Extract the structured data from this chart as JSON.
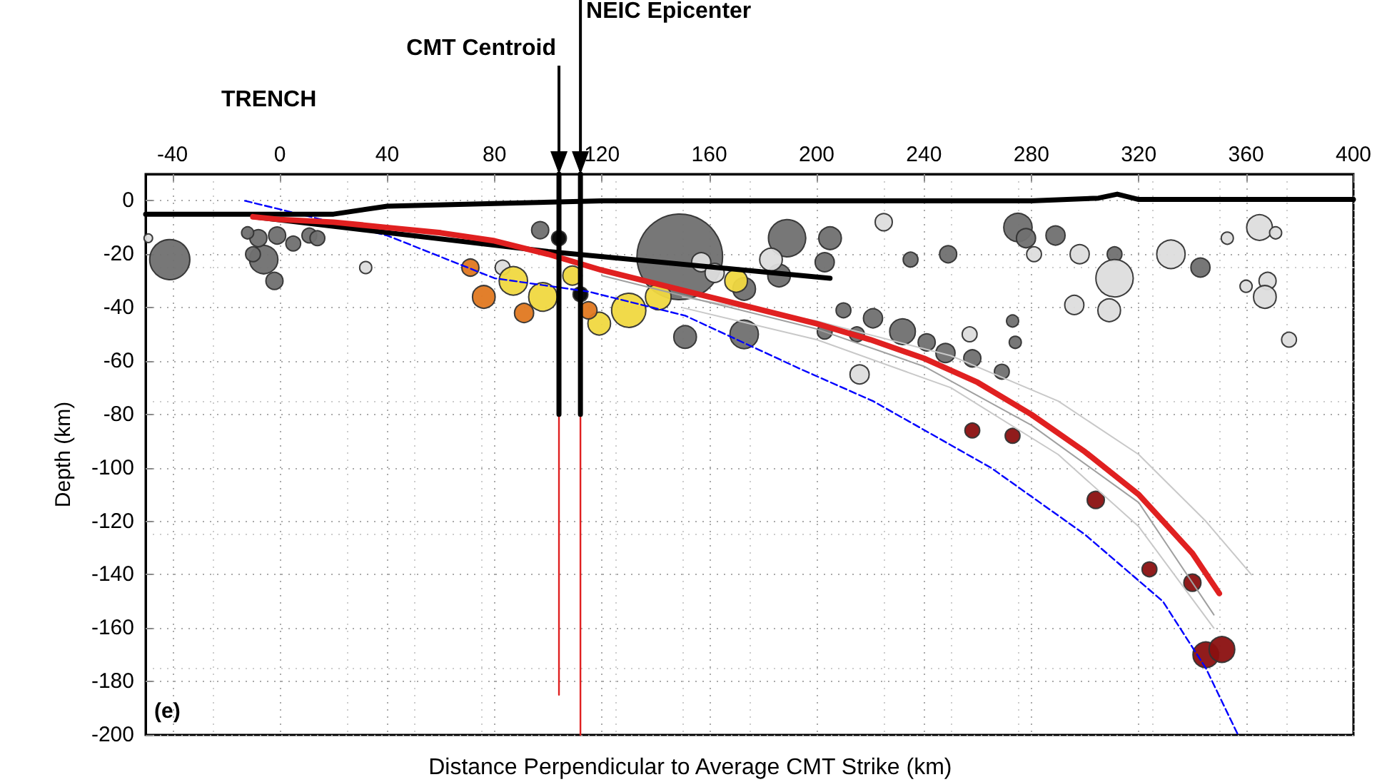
{
  "chart_data": {
    "type": "line",
    "xlabel": "Distance Perpendicular to Average CMT Strike (km)",
    "ylabel": "Depth (km)",
    "xlim": [
      -50,
      400
    ],
    "xticks": [
      -40,
      0,
      40,
      80,
      120,
      160,
      200,
      240,
      280,
      320,
      360,
      400
    ],
    "ylim": [
      -200,
      10
    ],
    "yticks": [
      -200,
      -180,
      -160,
      -140,
      -120,
      -100,
      -80,
      -60,
      -40,
      -20,
      0
    ],
    "grid": true,
    "annotations": [
      "TRENCH",
      {
        "text": "CMT Centroid",
        "x": 104,
        "y": 10
      },
      {
        "text": "NEIC Epicenter",
        "x": 112,
        "y": 10
      },
      "(e)"
    ],
    "series": [
      {
        "color": "#0000ff",
        "line_style": "dashed",
        "x": [
          -13,
          40,
          80,
          115,
          151,
          194,
          221,
          265,
          300,
          329,
          345,
          357
        ],
        "values": [
          0,
          -13,
          -29,
          -34,
          -43,
          -63,
          -75,
          -100,
          -125,
          -150,
          -175,
          -200
        ]
      },
      {
        "color": "#c8c8c8",
        "x": [
          150,
          200,
          250,
          290,
          320,
          345,
          362
        ],
        "values": [
          -36,
          -45,
          -58,
          -75,
          -95,
          -120,
          -140
        ]
      },
      {
        "color": "#c8c8c8",
        "x": [
          150,
          200,
          250,
          290,
          320,
          348
        ],
        "values": [
          -40,
          -52,
          -70,
          -95,
          -122,
          -160
        ]
      },
      {
        "color": "#a0a0a0",
        "x": [
          120,
          160,
          200,
          240,
          280,
          320,
          348
        ],
        "values": [
          -28,
          -38,
          -48,
          -62,
          -84,
          -113,
          -155
        ]
      },
      {
        "color": "#000000",
        "x": [
          -50,
          20,
          40,
          80,
          120,
          200,
          280,
          305,
          312,
          320,
          360,
          400
        ],
        "values": [
          -5,
          -5,
          -2,
          -1,
          0,
          0,
          0,
          1,
          2.5,
          0.5,
          0.5,
          0.5
        ]
      },
      {
        "color": "#000000",
        "x": [
          -10,
          100,
          205
        ],
        "values": [
          -6,
          -19,
          -29
        ]
      },
      {
        "type": "scatter",
        "color": "#707070",
        "x": [
          -41,
          -6,
          -8,
          -10,
          -1,
          5,
          11,
          14,
          -2,
          -12,
          97,
          149,
          189,
          186,
          205,
          203,
          173,
          210,
          221,
          232,
          241,
          248,
          215,
          203,
          173,
          151,
          258,
          269,
          274,
          275,
          278,
          289,
          249,
          235,
          311,
          343,
          273
        ],
        "values": [
          -22,
          -22,
          -14,
          -20,
          -13,
          -16,
          -13,
          -14,
          -30,
          -12,
          -11,
          -21,
          -14,
          -28,
          -14,
          -23,
          -33,
          -41,
          -44,
          -49,
          -53,
          -57,
          -50,
          -49,
          -50,
          -51,
          -59,
          -64,
          -53,
          -10,
          -14,
          -13,
          -20,
          -22,
          -20,
          -25,
          -45
        ],
        "sizes": [
          0.22,
          0.11,
          0.04,
          0.03,
          0.04,
          0.03,
          0.03,
          0.03,
          0.04,
          0.02,
          0.04,
          1,
          0.19,
          0.07,
          0.07,
          0.05,
          0.07,
          0.03,
          0.05,
          0.09,
          0.04,
          0.05,
          0.03,
          0.03,
          0.11,
          0.07,
          0.04,
          0.03,
          0.02,
          0.11,
          0.05,
          0.05,
          0.04,
          0.03,
          0.03,
          0.05,
          0.02
        ]
      },
      {
        "type": "scatter",
        "color": "#dddddd",
        "x": [
          -49,
          32,
          83,
          157,
          162,
          183,
          365,
          371,
          353,
          281,
          298,
          311,
          332,
          296,
          309,
          360,
          368,
          367,
          376,
          257,
          225,
          216
        ],
        "values": [
          -14,
          -25,
          -25,
          -23,
          -27,
          -22,
          -10,
          -12,
          -14,
          -20,
          -20,
          -29,
          -20,
          -39,
          -41,
          -32,
          -30,
          -36,
          -52,
          -50,
          -8,
          -65
        ],
        "sizes": [
          0.01,
          0.02,
          0.03,
          0.05,
          0.05,
          0.07,
          0.09,
          0.02,
          0.02,
          0.03,
          0.05,
          0.19,
          0.11,
          0.05,
          0.07,
          0.02,
          0.04,
          0.07,
          0.03,
          0.03,
          0.04,
          0.05
        ]
      },
      {
        "type": "scatter",
        "color": "#f0d840",
        "x": [
          87,
          98,
          130,
          141,
          119,
          170,
          109
        ],
        "values": [
          -30,
          -36,
          -41,
          -36,
          -46,
          -30,
          -28
        ],
        "sizes": [
          0.11,
          0.11,
          0.16,
          0.09,
          0.07,
          0.07,
          0.05
        ]
      },
      {
        "type": "scatter",
        "color": "#e07820",
        "x": [
          76,
          71,
          91,
          115
        ],
        "values": [
          -36,
          -25,
          -42,
          -41
        ],
        "sizes": [
          0.07,
          0.04,
          0.05,
          0.04
        ]
      },
      {
        "type": "scatter",
        "color": "#8b1010",
        "x": [
          258,
          273,
          304,
          324,
          340,
          345,
          351
        ],
        "values": [
          -86,
          -88,
          -112,
          -138,
          -143,
          -170,
          -168
        ],
        "sizes": [
          0.03,
          0.03,
          0.04,
          0.03,
          0.04,
          0.09,
          0.09
        ]
      },
      {
        "color": "#e02020",
        "x": [
          -10,
          0,
          20,
          40,
          60,
          80,
          100,
          120,
          140,
          160,
          180,
          200,
          220,
          240,
          260,
          280,
          300,
          320,
          340,
          350
        ],
        "values": [
          -6,
          -7,
          -8,
          -10,
          -12,
          -15,
          -20,
          -26,
          -31,
          -36,
          -41,
          -46,
          -52,
          -59,
          -68,
          -80,
          -94,
          -110,
          -132,
          -147
        ]
      },
      {
        "color": "#e02020",
        "x": [
          104,
          104
        ],
        "values": [
          0,
          -185
        ]
      },
      {
        "color": "#e02020",
        "x": [
          112,
          112
        ],
        "values": [
          0,
          -200
        ]
      },
      {
        "color": "#000000",
        "x": [
          104,
          104
        ],
        "values": [
          10,
          -80
        ]
      },
      {
        "color": "#000000",
        "x": [
          112,
          112
        ],
        "values": [
          10,
          -80
        ]
      },
      {
        "type": "scatter",
        "color": "#000000",
        "x": [
          104,
          112
        ],
        "values": [
          -14,
          -35
        ],
        "sizes": [
          0.03,
          0.03
        ]
      }
    ]
  }
}
